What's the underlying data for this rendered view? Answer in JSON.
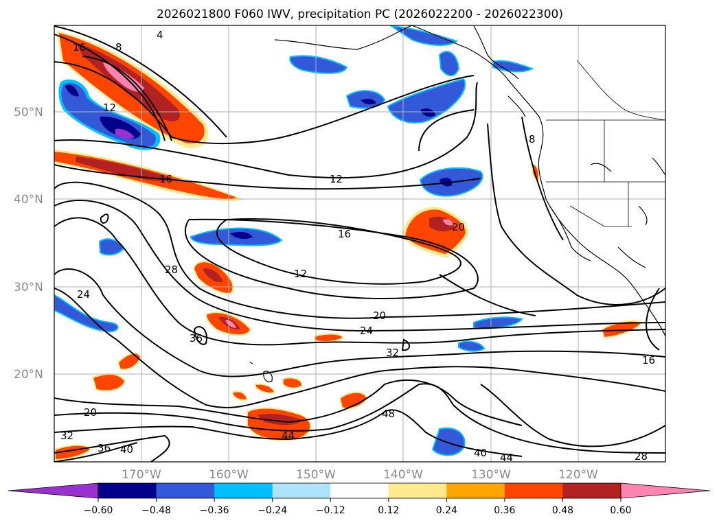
{
  "title": "2026021800 F060 IWV, precipitation PC (2026022200 - 2026022300)",
  "map": {
    "lat_labels": [
      "50°N",
      "40°N",
      "30°N",
      "20°N"
    ],
    "lon_labels": [
      "170°W",
      "160°W",
      "150°W",
      "140°W",
      "130°W",
      "120°W"
    ],
    "contour_labels": [
      "4",
      "8",
      "16",
      "12",
      "16",
      "12",
      "16",
      "12",
      "20",
      "28",
      "24",
      "36",
      "20",
      "24",
      "32",
      "48",
      "44",
      "40",
      "44",
      "20",
      "32",
      "36",
      "40",
      "16",
      "28",
      "8"
    ]
  },
  "colorbar": {
    "ticks": [
      "−0.60",
      "−0.48",
      "−0.36",
      "−0.24",
      "−0.12",
      "0.12",
      "0.24",
      "0.36",
      "0.48",
      "0.60"
    ],
    "colors": [
      "#9b30d0",
      "#00008b",
      "#3459d8",
      "#00bfff",
      "#ade4fb",
      "#ffffff",
      "#ffe98f",
      "#ffa500",
      "#ff4500",
      "#b22222",
      "#ff85b0"
    ]
  },
  "shading_colors": {
    "neg_light": "#ade4fb",
    "neg_cyan": "#00bfff",
    "neg_blue": "#3459d8",
    "neg_navy": "#00008b",
    "neg_purple": "#9b30d0",
    "pos_yellow": "#ffe98f",
    "pos_orange": "#ffa500",
    "pos_red": "#ff4500",
    "pos_darkred": "#b22222",
    "pos_pink": "#ff85b0"
  }
}
